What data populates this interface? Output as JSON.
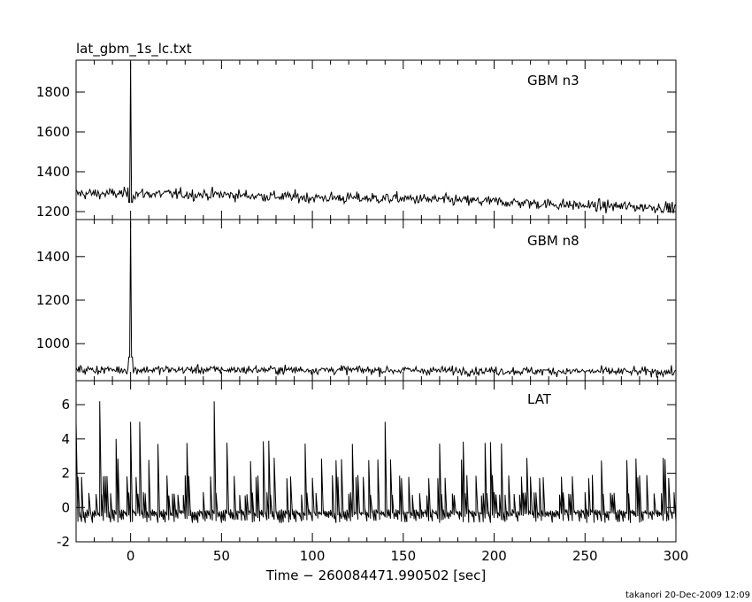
{
  "chart_data": {
    "type": "line",
    "title": "lat_gbm_1s_lc.txt",
    "xlabel": "Time − 260084471.990502 [sec]",
    "xlim": [
      -30,
      300
    ],
    "xticks": [
      0,
      50,
      100,
      150,
      200,
      250,
      300
    ],
    "footer": "takanori 20-Dec-2009 12:09",
    "panels": [
      {
        "name": "GBM n3",
        "ylim": [
          1160,
          1960
        ],
        "yticks": [
          1200,
          1400,
          1600,
          1800
        ],
        "baseline": [
          [
            -30,
            1290
          ],
          [
            0,
            1290
          ],
          [
            50,
            1285
          ],
          [
            100,
            1270
          ],
          [
            150,
            1265
          ],
          [
            200,
            1250
          ],
          [
            250,
            1230
          ],
          [
            300,
            1220
          ]
        ],
        "noise": 40,
        "spike": {
          "x": 0,
          "y": 1950
        }
      },
      {
        "name": "GBM n8",
        "ylim": [
          830,
          1570
        ],
        "yticks": [
          1000,
          1200,
          1400
        ],
        "baseline": [
          [
            -30,
            880
          ],
          [
            0,
            880
          ],
          [
            100,
            880
          ],
          [
            200,
            875
          ],
          [
            300,
            870
          ]
        ],
        "noise": 28,
        "spike": {
          "x": 0,
          "y": 1560
        }
      },
      {
        "name": "LAT",
        "ylim": [
          -2,
          7.4
        ],
        "yticks": [
          -2,
          0,
          2,
          4,
          6
        ],
        "peaks": [
          [
            -30,
            5
          ],
          [
            -17,
            6.2
          ],
          [
            -8,
            4
          ],
          [
            0,
            5
          ],
          [
            5,
            5
          ],
          [
            46,
            6.2
          ],
          [
            140,
            5
          ]
        ]
      }
    ]
  }
}
